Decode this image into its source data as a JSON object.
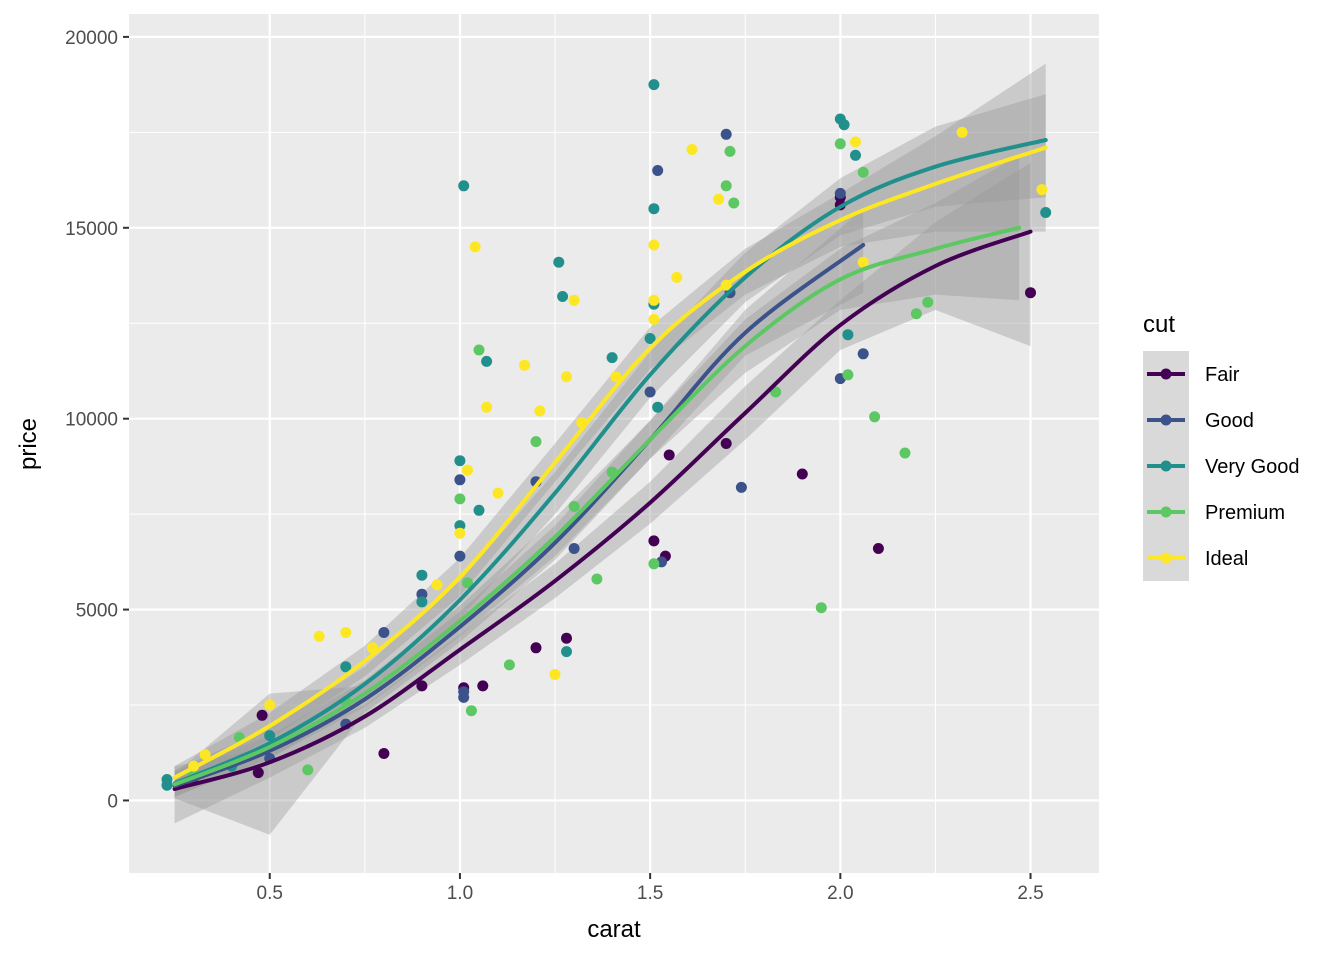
{
  "chart_data": {
    "type": "scatter",
    "title": "",
    "xlabel": "carat",
    "ylabel": "price",
    "xlim": [
      0.13,
      2.68
    ],
    "ylim": [
      -1900,
      20600
    ],
    "x_ticks": [
      0.5,
      1.0,
      1.5,
      2.0,
      2.5
    ],
    "x_tick_labels": [
      "0.5",
      "1.0",
      "1.5",
      "2.0",
      "2.5"
    ],
    "y_ticks": [
      0,
      5000,
      10000,
      15000,
      20000
    ],
    "y_tick_labels": [
      "0",
      "5000",
      "10000",
      "15000",
      "20000"
    ],
    "grid": true,
    "legend": {
      "title": "cut",
      "position": "right"
    },
    "series": [
      {
        "name": "Fair",
        "color": "#440154",
        "points": [
          [
            0.48,
            2230
          ],
          [
            0.47,
            730
          ],
          [
            0.8,
            1230
          ],
          [
            0.9,
            3000
          ],
          [
            1.01,
            2950
          ],
          [
            1.06,
            3000
          ],
          [
            1.2,
            4000
          ],
          [
            1.28,
            4250
          ],
          [
            1.51,
            6800
          ],
          [
            1.54,
            6400
          ],
          [
            1.55,
            9050
          ],
          [
            1.9,
            8550
          ],
          [
            2.0,
            15600
          ],
          [
            2.0,
            15800
          ],
          [
            2.1,
            6600
          ],
          [
            2.5,
            13300
          ],
          [
            1.7,
            9350
          ]
        ],
        "fit": [
          [
            0.25,
            300
          ],
          [
            0.5,
            1000
          ],
          [
            0.75,
            2200
          ],
          [
            1.0,
            3950
          ],
          [
            1.25,
            5750
          ],
          [
            1.5,
            7800
          ],
          [
            1.75,
            10150
          ],
          [
            2.0,
            12450
          ],
          [
            2.25,
            14000
          ],
          [
            2.5,
            14900
          ]
        ],
        "band": [
          [
            0.25,
            900,
            -600
          ],
          [
            0.5,
            1400,
            600
          ],
          [
            0.75,
            2500,
            1900
          ],
          [
            1.0,
            4350,
            3550
          ],
          [
            1.25,
            6200,
            5300
          ],
          [
            1.5,
            8350,
            7250
          ],
          [
            1.75,
            10850,
            9450
          ],
          [
            2.0,
            13100,
            11800
          ],
          [
            2.25,
            15150,
            12850
          ],
          [
            2.5,
            16700,
            11900
          ]
        ]
      },
      {
        "name": "Good",
        "color": "#3B528B",
        "points": [
          [
            0.3,
            600
          ],
          [
            0.5,
            1100
          ],
          [
            0.7,
            2000
          ],
          [
            0.8,
            4400
          ],
          [
            0.9,
            5400
          ],
          [
            1.0,
            6400
          ],
          [
            1.0,
            8400
          ],
          [
            1.01,
            2700
          ],
          [
            1.01,
            2850
          ],
          [
            1.2,
            8350
          ],
          [
            1.3,
            6600
          ],
          [
            1.5,
            10700
          ],
          [
            1.52,
            16500
          ],
          [
            1.53,
            6250
          ],
          [
            1.7,
            17450
          ],
          [
            1.71,
            13300
          ],
          [
            1.74,
            8200
          ],
          [
            2.0,
            15900
          ],
          [
            2.0,
            11050
          ],
          [
            2.06,
            11700
          ]
        ],
        "fit": [
          [
            0.25,
            380
          ],
          [
            0.5,
            1300
          ],
          [
            0.75,
            2650
          ],
          [
            1.0,
            4550
          ],
          [
            1.25,
            6750
          ],
          [
            1.5,
            9450
          ],
          [
            1.75,
            12250
          ],
          [
            2.06,
            14550
          ]
        ],
        "band": [
          [
            0.25,
            700,
            60
          ],
          [
            0.5,
            2800,
            -900
          ],
          [
            0.75,
            3000,
            2300
          ],
          [
            1.0,
            4950,
            4150
          ],
          [
            1.25,
            7200,
            6300
          ],
          [
            1.5,
            9950,
            8950
          ],
          [
            1.75,
            12850,
            11650
          ],
          [
            2.06,
            15500,
            13300
          ]
        ]
      },
      {
        "name": "Very Good",
        "color": "#21908C",
        "points": [
          [
            0.23,
            400
          ],
          [
            0.23,
            550
          ],
          [
            0.4,
            900
          ],
          [
            0.5,
            1700
          ],
          [
            0.7,
            3500
          ],
          [
            0.9,
            5900
          ],
          [
            0.9,
            5200
          ],
          [
            1.0,
            7200
          ],
          [
            1.0,
            8900
          ],
          [
            1.01,
            16100
          ],
          [
            1.05,
            7600
          ],
          [
            1.07,
            11500
          ],
          [
            1.26,
            14100
          ],
          [
            1.27,
            13200
          ],
          [
            1.28,
            3900
          ],
          [
            1.4,
            11600
          ],
          [
            1.5,
            12100
          ],
          [
            1.51,
            13000
          ],
          [
            1.51,
            15500
          ],
          [
            1.51,
            18750
          ],
          [
            1.52,
            10300
          ],
          [
            2.0,
            17850
          ],
          [
            2.01,
            17700
          ],
          [
            2.04,
            16900
          ],
          [
            2.02,
            12200
          ],
          [
            2.54,
            15400
          ]
        ],
        "fit": [
          [
            0.25,
            450
          ],
          [
            0.5,
            1500
          ],
          [
            0.75,
            3050
          ],
          [
            1.0,
            5250
          ],
          [
            1.25,
            8050
          ],
          [
            1.5,
            11150
          ],
          [
            1.75,
            13700
          ],
          [
            2.0,
            15550
          ],
          [
            2.25,
            16600
          ],
          [
            2.54,
            17300
          ]
        ],
        "band": [
          [
            0.25,
            800,
            100
          ],
          [
            0.5,
            1900,
            1100
          ],
          [
            0.75,
            3500,
            2600
          ],
          [
            1.0,
            5750,
            4750
          ],
          [
            1.25,
            8600,
            7500
          ],
          [
            1.5,
            11750,
            10550
          ],
          [
            1.75,
            14350,
            13050
          ],
          [
            2.0,
            16300,
            14800
          ],
          [
            2.25,
            17650,
            15550
          ],
          [
            2.54,
            18500,
            15800
          ]
        ]
      },
      {
        "name": "Premium",
        "color": "#5DC863",
        "points": [
          [
            0.3,
            700
          ],
          [
            0.42,
            1650
          ],
          [
            0.6,
            800
          ],
          [
            0.7,
            2600
          ],
          [
            1.0,
            7900
          ],
          [
            1.02,
            5700
          ],
          [
            1.03,
            2350
          ],
          [
            1.05,
            11800
          ],
          [
            1.2,
            9400
          ],
          [
            1.13,
            3550
          ],
          [
            1.3,
            7700
          ],
          [
            1.36,
            5800
          ],
          [
            1.4,
            8600
          ],
          [
            1.51,
            6200
          ],
          [
            1.7,
            16100
          ],
          [
            1.71,
            17000
          ],
          [
            1.72,
            15650
          ],
          [
            1.83,
            10700
          ],
          [
            1.95,
            5050
          ],
          [
            2.0,
            17200
          ],
          [
            2.02,
            11150
          ],
          [
            2.06,
            16450
          ],
          [
            2.09,
            10050
          ],
          [
            2.17,
            9100
          ],
          [
            2.2,
            12750
          ],
          [
            2.23,
            13050
          ]
        ],
        "fit": [
          [
            0.25,
            420
          ],
          [
            0.5,
            1400
          ],
          [
            0.75,
            2800
          ],
          [
            1.0,
            4700
          ],
          [
            1.25,
            6900
          ],
          [
            1.5,
            9450
          ],
          [
            1.75,
            11900
          ],
          [
            2.0,
            13650
          ],
          [
            2.25,
            14450
          ],
          [
            2.47,
            15000
          ]
        ],
        "band": [
          [
            0.25,
            750,
            90
          ],
          [
            0.5,
            1700,
            1100
          ],
          [
            0.75,
            3150,
            2450
          ],
          [
            1.0,
            5100,
            4300
          ],
          [
            1.25,
            7400,
            6400
          ],
          [
            1.5,
            9950,
            8950
          ],
          [
            1.75,
            12600,
            11200
          ],
          [
            2.0,
            14450,
            12850
          ],
          [
            2.25,
            15650,
            13250
          ],
          [
            2.47,
            16900,
            13100
          ]
        ]
      },
      {
        "name": "Ideal",
        "color": "#FDE725",
        "points": [
          [
            0.3,
            900
          ],
          [
            0.33,
            1200
          ],
          [
            0.5,
            2500
          ],
          [
            0.63,
            4300
          ],
          [
            0.7,
            4400
          ],
          [
            0.77,
            4000
          ],
          [
            0.94,
            5650
          ],
          [
            1.0,
            7000
          ],
          [
            1.02,
            8650
          ],
          [
            1.04,
            14500
          ],
          [
            1.07,
            10300
          ],
          [
            1.1,
            8050
          ],
          [
            1.17,
            11400
          ],
          [
            1.21,
            10200
          ],
          [
            1.25,
            3300
          ],
          [
            1.28,
            11100
          ],
          [
            1.3,
            13100
          ],
          [
            1.32,
            9900
          ],
          [
            1.41,
            11100
          ],
          [
            1.51,
            14550
          ],
          [
            1.51,
            13100
          ],
          [
            1.51,
            12600
          ],
          [
            1.57,
            13700
          ],
          [
            1.61,
            17050
          ],
          [
            1.68,
            15750
          ],
          [
            1.7,
            13500
          ],
          [
            2.04,
            17250
          ],
          [
            2.06,
            14100
          ],
          [
            2.32,
            17500
          ],
          [
            2.53,
            16000
          ]
        ],
        "fit": [
          [
            0.25,
            600
          ],
          [
            0.5,
            1950
          ],
          [
            0.75,
            3650
          ],
          [
            1.0,
            5850
          ],
          [
            1.25,
            8850
          ],
          [
            1.5,
            11850
          ],
          [
            1.75,
            13850
          ],
          [
            2.0,
            15200
          ],
          [
            2.25,
            16150
          ],
          [
            2.54,
            17100
          ]
        ],
        "band": [
          [
            0.25,
            900,
            300
          ],
          [
            0.5,
            2300,
            1600
          ],
          [
            0.75,
            4050,
            3250
          ],
          [
            1.0,
            6350,
            5350
          ],
          [
            1.25,
            9350,
            8350
          ],
          [
            1.5,
            12400,
            11300
          ],
          [
            1.75,
            14450,
            13250
          ],
          [
            2.0,
            15900,
            14500
          ],
          [
            2.25,
            17400,
            14900
          ],
          [
            2.54,
            19300,
            14900
          ]
        ]
      }
    ]
  }
}
